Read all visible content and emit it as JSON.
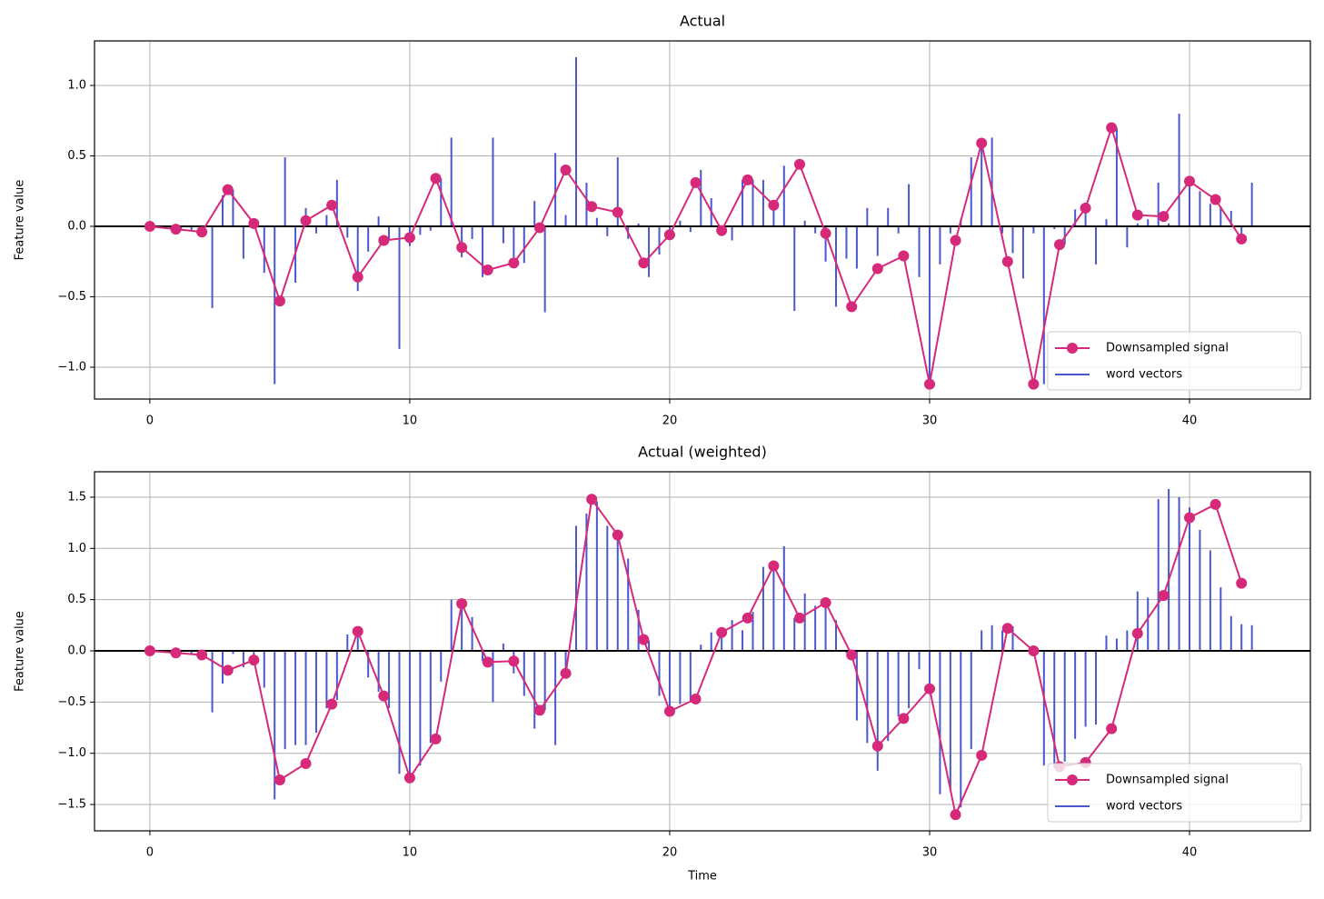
{
  "chart_data": [
    {
      "type": "line",
      "title": "Actual",
      "ylabel": "Feature value",
      "xlim": [
        -2.13,
        44.65
      ],
      "ylim": [
        -1.226,
        1.316
      ],
      "xticks": [
        0,
        10,
        20,
        30,
        40
      ],
      "yticks": [
        {
          "value": -1,
          "label": "−1.0"
        },
        {
          "value": -0.5,
          "label": "−0.5"
        },
        {
          "value": 0,
          "label": "0.0"
        },
        {
          "value": 0.5,
          "label": "0.5"
        },
        {
          "value": 1,
          "label": "1.0"
        }
      ],
      "grid": true,
      "hline": 0,
      "legend": "lower right",
      "series": [
        {
          "name": "Downsampled signal",
          "color": "#d6297a",
          "style": "line-marker",
          "x": [
            0,
            1,
            2,
            3,
            4,
            5,
            6,
            7,
            8,
            9,
            10,
            11,
            12,
            13,
            14,
            15,
            16,
            17,
            18,
            19,
            20,
            21,
            22,
            23,
            24,
            25,
            26,
            27,
            28,
            29,
            30,
            31,
            32,
            33,
            34,
            35,
            36,
            37,
            38,
            39,
            40,
            41,
            42
          ],
          "values": [
            0,
            -0.02,
            -0.04,
            0.26,
            0.02,
            -0.53,
            0.04,
            0.15,
            -0.36,
            -0.1,
            -0.08,
            0.34,
            -0.15,
            -0.31,
            -0.26,
            -0.01,
            0.4,
            0.14,
            0.1,
            -0.26,
            -0.06,
            0.31,
            -0.03,
            0.33,
            0.15,
            0.44,
            -0.05,
            -0.57,
            -0.3,
            -0.21,
            -1.12,
            -0.1,
            0.59,
            -0.25,
            -1.12,
            -0.13,
            0.13,
            0.7,
            0.08,
            0.07,
            0.32,
            0.19,
            -0.09
          ]
        },
        {
          "name": "word vectors",
          "color": "#4b57cc",
          "style": "stem",
          "x": [
            0,
            0.4,
            0.8,
            1.2,
            1.6,
            2,
            2.4,
            2.8,
            3.2,
            3.6,
            4,
            4.4,
            4.8,
            5.2,
            5.6,
            6,
            6.4,
            6.8,
            7.2,
            7.6,
            8,
            8.4,
            8.8,
            9.2,
            9.6,
            10,
            10.4,
            10.8,
            11.2,
            11.6,
            12,
            12.4,
            12.8,
            13.2,
            13.6,
            14,
            14.4,
            14.8,
            15.2,
            15.6,
            16,
            16.4,
            16.8,
            17.2,
            17.6,
            18,
            18.4,
            18.8,
            19.2,
            19.6,
            20,
            20.4,
            20.8,
            21.2,
            21.6,
            22,
            22.4,
            22.8,
            23.2,
            23.6,
            24,
            24.4,
            24.8,
            25.2,
            25.6,
            26,
            26.4,
            26.8,
            27.2,
            27.6,
            28,
            28.4,
            28.8,
            29.2,
            29.6,
            30,
            30.4,
            30.8,
            31.2,
            31.6,
            32,
            32.4,
            32.8,
            33.2,
            33.6,
            34,
            34.4,
            34.8,
            35.2,
            35.6,
            36,
            36.4,
            36.8,
            37.2,
            37.6,
            38,
            38.4,
            38.8,
            39.2,
            39.6,
            40,
            40.4,
            40.8,
            41.2,
            41.6,
            42,
            42.4
          ],
          "values": [
            0,
            -0.01,
            -0.02,
            -0.02,
            -0.03,
            -0.04,
            -0.58,
            0.22,
            0.26,
            -0.23,
            0.02,
            -0.33,
            -1.12,
            0.49,
            -0.4,
            0.13,
            -0.05,
            0.08,
            0.33,
            -0.08,
            -0.46,
            -0.18,
            0.07,
            -0.1,
            -0.87,
            -0.14,
            -0.06,
            -0.03,
            0.34,
            0.63,
            -0.22,
            -0.09,
            -0.36,
            0.63,
            -0.12,
            -0.22,
            -0.26,
            0.18,
            -0.61,
            0.52,
            0.08,
            1.2,
            0.31,
            0.06,
            -0.07,
            0.49,
            -0.09,
            0.02,
            -0.36,
            -0.2,
            -0.06,
            0.04,
            -0.04,
            0.4,
            0.2,
            -0.03,
            -0.1,
            0.33,
            0.33,
            0.33,
            0.15,
            0.43,
            -0.6,
            0.04,
            -0.05,
            -0.25,
            -0.57,
            -0.23,
            -0.3,
            0.13,
            -0.21,
            0.13,
            -0.05,
            0.3,
            -0.36,
            -1.12,
            -0.27,
            -0.05,
            0.05,
            0.49,
            0.59,
            0.63,
            -0.05,
            -0.19,
            -0.37,
            -0.05,
            -1.12,
            -0.02,
            -0.13,
            0.12,
            0.13,
            -0.27,
            0.05,
            0.7,
            -0.15,
            0.02,
            0.05,
            0.31,
            0.02,
            0.8,
            0.32,
            0.25,
            0.16,
            0.14,
            0.11,
            -0.06,
            0.31
          ]
        }
      ]
    },
    {
      "type": "line",
      "title": "Actual (weighted)",
      "ylabel": "Feature value",
      "xlabel": "Time",
      "xlim": [
        -2.13,
        44.65
      ],
      "ylim": [
        -1.757,
        1.748
      ],
      "xticks": [
        0,
        10,
        20,
        30,
        40
      ],
      "yticks": [
        {
          "value": -1.5,
          "label": "−1.5"
        },
        {
          "value": -1,
          "label": "−1.0"
        },
        {
          "value": -0.5,
          "label": "−0.5"
        },
        {
          "value": 0,
          "label": "0.0"
        },
        {
          "value": 0.5,
          "label": "0.5"
        },
        {
          "value": 1,
          "label": "1.0"
        },
        {
          "value": 1.5,
          "label": "1.5"
        }
      ],
      "grid": true,
      "hline": 0,
      "legend": "lower right",
      "series": [
        {
          "name": "Downsampled signal",
          "color": "#d6297a",
          "style": "line-marker",
          "x": [
            0,
            1,
            2,
            3,
            4,
            5,
            6,
            7,
            8,
            9,
            10,
            11,
            12,
            13,
            14,
            15,
            16,
            17,
            18,
            19,
            20,
            21,
            22,
            23,
            24,
            25,
            26,
            27,
            28,
            29,
            30,
            31,
            32,
            33,
            34,
            35,
            36,
            37,
            38,
            39,
            40,
            41,
            42
          ],
          "values": [
            0,
            -0.02,
            -0.04,
            -0.19,
            -0.09,
            -1.26,
            -1.1,
            -0.52,
            0.19,
            -0.44,
            -1.24,
            -0.86,
            0.46,
            -0.11,
            -0.1,
            -0.58,
            -0.22,
            1.48,
            1.13,
            0.11,
            -0.59,
            -0.47,
            0.18,
            0.32,
            0.83,
            0.32,
            0.47,
            -0.04,
            -0.93,
            -0.66,
            -0.37,
            -1.6,
            -1.02,
            0.22,
            0,
            -1.13,
            -1.09,
            -0.76,
            0.17,
            0.54,
            1.3,
            1.43,
            0.66
          ]
        },
        {
          "name": "word vectors",
          "color": "#4b57cc",
          "style": "stem",
          "x": [
            0,
            0.4,
            0.8,
            1.2,
            1.6,
            2,
            2.4,
            2.8,
            3.2,
            3.6,
            4,
            4.4,
            4.8,
            5.2,
            5.6,
            6,
            6.4,
            6.8,
            7.2,
            7.6,
            8,
            8.4,
            8.8,
            9.2,
            9.6,
            10,
            10.4,
            10.8,
            11.2,
            11.6,
            12,
            12.4,
            12.8,
            13.2,
            13.6,
            14,
            14.4,
            14.8,
            15.2,
            15.6,
            16,
            16.4,
            16.8,
            17.2,
            17.6,
            18,
            18.4,
            18.8,
            19.2,
            19.6,
            20,
            20.4,
            20.8,
            21.2,
            21.6,
            22,
            22.4,
            22.8,
            23.2,
            23.6,
            24,
            24.4,
            24.8,
            25.2,
            25.6,
            26,
            26.4,
            26.8,
            27.2,
            27.6,
            28,
            28.4,
            28.8,
            29.2,
            29.6,
            30,
            30.4,
            30.8,
            31.2,
            31.6,
            32,
            32.4,
            32.8,
            33.2,
            33.6,
            34,
            34.4,
            34.8,
            35.2,
            35.6,
            36,
            36.4,
            36.8,
            37.2,
            37.6,
            38,
            38.4,
            38.8,
            39.2,
            39.6,
            40,
            40.4,
            40.8,
            41.2,
            41.6,
            42,
            42.4
          ],
          "values": [
            0,
            -0.01,
            -0.01,
            -0.02,
            -0.03,
            -0.04,
            -0.6,
            -0.32,
            -0.03,
            -0.16,
            -0.09,
            -0.36,
            -1.45,
            -0.96,
            -0.92,
            -0.92,
            -0.8,
            -0.56,
            -0.48,
            0.16,
            0.14,
            -0.26,
            -0.4,
            -0.56,
            -1.2,
            -1.24,
            -1.12,
            -0.9,
            -0.3,
            0.5,
            0.46,
            0.33,
            -0.1,
            -0.5,
            0.07,
            -0.22,
            -0.44,
            -0.76,
            -0.58,
            -0.92,
            -0.24,
            1.22,
            1.34,
            1.46,
            1.22,
            1.12,
            0.9,
            0.4,
            0.1,
            -0.44,
            -0.56,
            -0.52,
            -0.5,
            0.06,
            0.18,
            0.18,
            0.3,
            0.2,
            0.38,
            0.82,
            0.8,
            1.02,
            0.32,
            0.56,
            0.44,
            0.47,
            0.3,
            -0.02,
            -0.68,
            -0.9,
            -1.17,
            -0.88,
            -0.64,
            -0.56,
            -0.18,
            -0.38,
            -1.4,
            -1.36,
            -1.53,
            -0.96,
            0.2,
            0.25,
            0.2,
            0.24,
            0,
            -0.02,
            -1.12,
            -1.14,
            -1.08,
            -0.86,
            -0.74,
            -0.72,
            0.15,
            0.12,
            0.2,
            0.58,
            0.52,
            1.48,
            1.58,
            1.5,
            1.4,
            1.18,
            0.98,
            0.62,
            0.34,
            0.26,
            0.25
          ]
        }
      ]
    }
  ]
}
